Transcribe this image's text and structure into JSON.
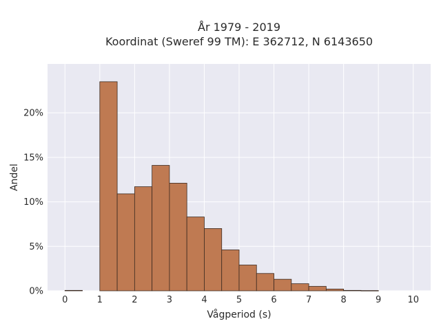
{
  "chart_data": {
    "type": "bar",
    "title_line1": "År 1979 - 2019",
    "title_line2": "Koordinat (Sweref 99 TM): E 362712, N 6143650",
    "xlabel": "Vågperiod (s)",
    "ylabel": "Andel",
    "xlim": [
      -0.5,
      10.5
    ],
    "ylim": [
      0,
      25.5
    ],
    "x_ticks": [
      0,
      1,
      2,
      3,
      4,
      5,
      6,
      7,
      8,
      9,
      10
    ],
    "x_tick_labels": [
      "0",
      "1",
      "2",
      "3",
      "4",
      "5",
      "6",
      "7",
      "8",
      "9",
      "10"
    ],
    "y_ticks": [
      0,
      5,
      10,
      15,
      20
    ],
    "y_tick_labels": [
      "0%",
      "5%",
      "10%",
      "15%",
      "20%"
    ],
    "bin_width": 0.5,
    "bins": [
      {
        "x0": 0.0,
        "value": 0.05
      },
      {
        "x0": 1.0,
        "value": 23.5
      },
      {
        "x0": 1.5,
        "value": 10.9
      },
      {
        "x0": 2.0,
        "value": 11.7
      },
      {
        "x0": 2.5,
        "value": 14.1
      },
      {
        "x0": 3.0,
        "value": 12.1
      },
      {
        "x0": 3.5,
        "value": 8.3
      },
      {
        "x0": 4.0,
        "value": 7.0
      },
      {
        "x0": 4.5,
        "value": 4.6
      },
      {
        "x0": 5.0,
        "value": 2.9
      },
      {
        "x0": 5.5,
        "value": 1.95
      },
      {
        "x0": 6.0,
        "value": 1.3
      },
      {
        "x0": 6.5,
        "value": 0.8
      },
      {
        "x0": 7.0,
        "value": 0.5
      },
      {
        "x0": 7.5,
        "value": 0.2
      },
      {
        "x0": 8.0,
        "value": 0.05
      },
      {
        "x0": 8.5,
        "value": 0.03
      }
    ],
    "grid": true,
    "colors": {
      "bar_fill": "#bf7a52",
      "bar_stroke": "#3b2a20",
      "plot_bg": "#e9e9f2",
      "grid": "#ffffff"
    }
  }
}
